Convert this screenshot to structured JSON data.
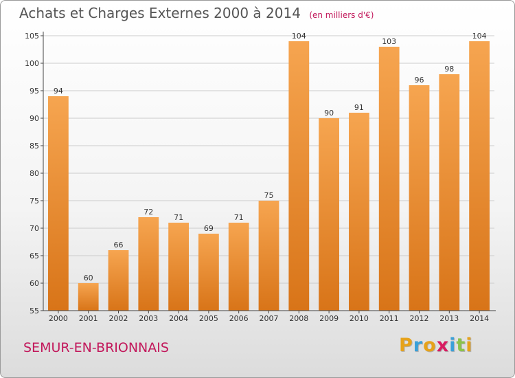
{
  "header": {
    "title": "Achats et Charges Externes 2000 à 2014",
    "unit": "(en milliers d'€)"
  },
  "footer": {
    "commune": "SEMUR-EN-BRIONNAIS",
    "logo_letters": [
      "P",
      "r",
      "o",
      "x",
      "i",
      "t",
      "i"
    ],
    "logo_colors": [
      "#e6a21a",
      "#3aa0d8",
      "#e6a21a",
      "#d81b60",
      "#3aa0d8",
      "#8bc34a",
      "#e6a21a"
    ]
  },
  "chart_data": {
    "type": "bar",
    "title": "Achats et Charges Externes 2000 à 2014",
    "xlabel": "",
    "ylabel": "",
    "categories": [
      "2000",
      "2001",
      "2002",
      "2003",
      "2004",
      "2005",
      "2006",
      "2007",
      "2008",
      "2009",
      "2010",
      "2011",
      "2012",
      "2013",
      "2014"
    ],
    "values": [
      94,
      60,
      66,
      72,
      71,
      69,
      71,
      75,
      104,
      90,
      91,
      103,
      96,
      98,
      104
    ],
    "ylim": [
      55,
      105
    ],
    "yticks": [
      55,
      60,
      65,
      70,
      75,
      80,
      85,
      90,
      95,
      100,
      105
    ],
    "grid": true,
    "colors": {
      "bar_top": "#f6a550",
      "bar_bottom": "#d87418",
      "grid": "#cccccc",
      "axis": "#444444"
    }
  }
}
